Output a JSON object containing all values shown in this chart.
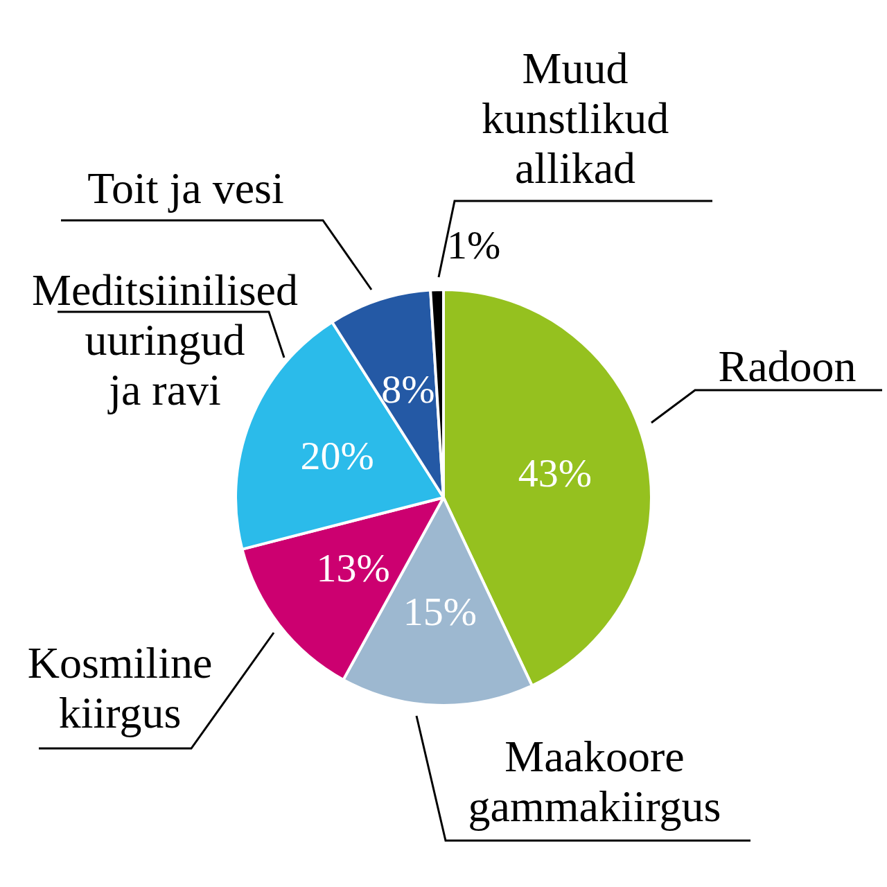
{
  "chart_data": {
    "type": "pie",
    "categories": [
      "Radoon",
      "Maakoore gammakiirgus",
      "Kosmiline kiirgus",
      "Meditsiinilised uuringud ja ravi",
      "Toit ja vesi",
      "Muud kunstlikud allikad"
    ],
    "values": [
      43,
      15,
      13,
      20,
      8,
      1
    ],
    "colors": [
      "#95c11f",
      "#9db8d0",
      "#cc0070",
      "#2bbbea",
      "#2459a5",
      "#000000"
    ],
    "value_labels": [
      "43%",
      "15%",
      "13%",
      "20%",
      "8%",
      "1%"
    ]
  }
}
